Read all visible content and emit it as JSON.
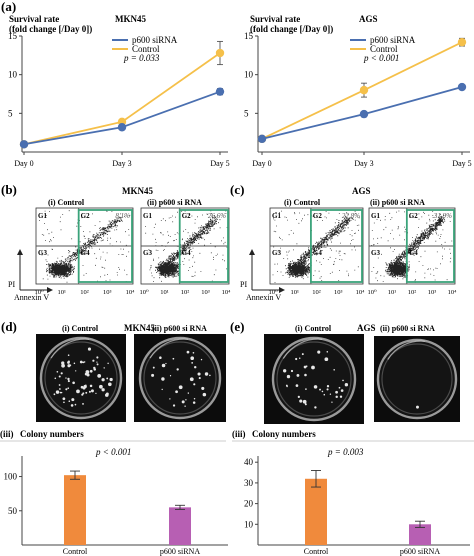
{
  "colors": {
    "sirna": "#4a6fb0",
    "control": "#f5c04a",
    "bar_control": "#f08a3c",
    "bar_sirna": "#b75fb3",
    "green_box": "#3aa37a",
    "axis": "#444444"
  },
  "panels": {
    "a": "(a)",
    "b": "(b)",
    "c": "(c)",
    "d": "(d)",
    "e": "(e)"
  },
  "survival": {
    "ylabel_line1": "Survival rate",
    "ylabel_line2": "(fold change [/Day 0])",
    "legend_sirna": "p600 siRNA",
    "legend_control": "Control"
  },
  "flow": {
    "mkn45_title": "MKN45",
    "ags_title": "AGS",
    "sub_control": "(i)  Control",
    "sub_sirna": "(ii)  p600 si RNA",
    "gate_labels": [
      "G1",
      "G2",
      "G3",
      "G4"
    ],
    "mkn45_pct_control": "8.1%",
    "mkn45_pct_sirna": "26.6%",
    "ags_pct_control": "22.8%",
    "ags_pct_sirna": "31.9%",
    "axis_pi": "PI",
    "axis_annexin": "Annexin V",
    "ticks": [
      "10⁰",
      "10¹",
      "10²",
      "10³",
      "10⁴"
    ]
  },
  "colony": {
    "mkn45_title": "MKN45",
    "ags_title": "AGS",
    "sub_control": "(i)  Control",
    "sub_sirna": "(ii)  p600 si RNA",
    "iii_label": "(iii)",
    "numbers_label": "Colony numbers"
  },
  "chart_data": [
    {
      "id": "survival-mkn45",
      "type": "line",
      "title": "MKN45",
      "ylabel": "Survival rate (fold change [/Day 0])",
      "categories": [
        "Day 0",
        "Day 3",
        "Day 5"
      ],
      "ylim": [
        0,
        15
      ],
      "yticks": [
        5,
        10,
        15
      ],
      "annotation": "p = 0.033",
      "series": [
        {
          "name": "p600 siRNA",
          "values": [
            1.0,
            3.2,
            7.8
          ],
          "errors": [
            0.1,
            0.2,
            0.4
          ]
        },
        {
          "name": "Control",
          "values": [
            1.0,
            3.9,
            12.8
          ],
          "errors": [
            0.1,
            0.3,
            1.5
          ]
        }
      ]
    },
    {
      "id": "survival-ags",
      "type": "line",
      "title": "AGS",
      "ylabel": "Survival rate (fold change [/Day 0])",
      "categories": [
        "Day 0",
        "Day 3",
        "Day 5"
      ],
      "ylim": [
        0,
        15
      ],
      "yticks": [
        5,
        10,
        15
      ],
      "annotation": "p < 0.001",
      "series": [
        {
          "name": "p600 siRNA",
          "values": [
            1.7,
            4.9,
            8.4
          ],
          "errors": [
            0.2,
            0.2,
            0.3
          ]
        },
        {
          "name": "Control",
          "values": [
            1.7,
            8.0,
            14.2
          ],
          "errors": [
            0.2,
            0.9,
            0.5
          ]
        }
      ]
    },
    {
      "id": "colony-mkn45",
      "type": "bar",
      "title": "MKN45",
      "categories": [
        "Control",
        "p600 siRNA"
      ],
      "ylim": [
        0,
        130
      ],
      "yticks": [
        50,
        100
      ],
      "annotation": "p < 0.001",
      "values": [
        102,
        55
      ],
      "errors": [
        6,
        3
      ]
    },
    {
      "id": "colony-ags",
      "type": "bar",
      "title": "AGS",
      "categories": [
        "Control",
        "p600 siRNA"
      ],
      "ylim": [
        0,
        43
      ],
      "yticks": [
        10,
        20,
        30,
        40
      ],
      "annotation": "p = 0.003",
      "values": [
        32,
        10
      ],
      "errors": [
        4,
        1.5
      ]
    }
  ]
}
